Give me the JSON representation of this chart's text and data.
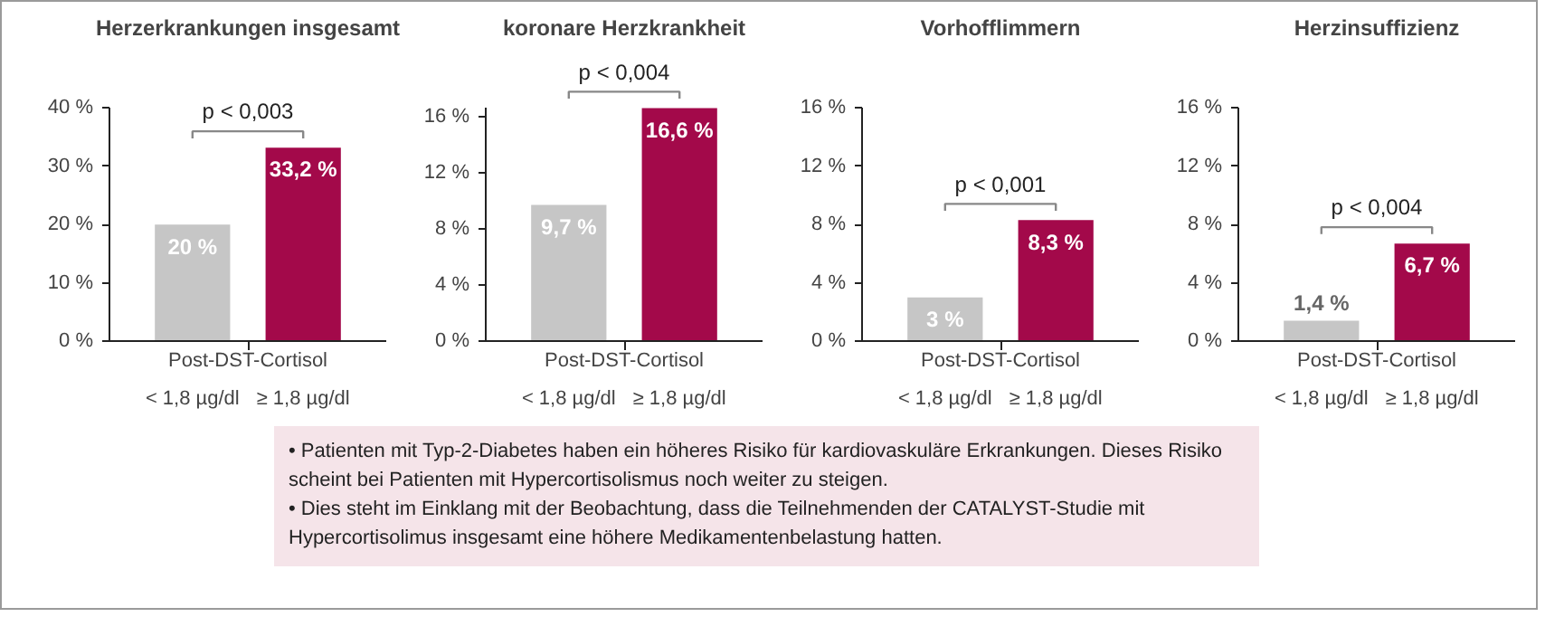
{
  "chart_data": [
    {
      "type": "bar",
      "title": "Herzerkrankungen insgesamt",
      "xlabel": "Post-DST-Cortisol",
      "categories": [
        "< 1,8 µg/dl",
        "≥ 1,8 µg/dl"
      ],
      "values": [
        20,
        33.2
      ],
      "colors": [
        "#c6c6c6",
        "#a3094a"
      ],
      "value_labels": [
        "20 %",
        "33,2 %"
      ],
      "ylim": [
        0,
        40
      ],
      "yticks": [
        {
          "value": 0,
          "label": "0 %"
        },
        {
          "value": 10,
          "label": "10 %"
        },
        {
          "value": 20,
          "label": "20 %"
        },
        {
          "value": 30,
          "label": "30 %"
        },
        {
          "value": 40,
          "label": "40 %"
        }
      ],
      "annotations": [
        "p < 0,003"
      ]
    },
    {
      "type": "bar",
      "title": "koronare Herzkrankheit",
      "xlabel": "Post-DST-Cortisol",
      "categories": [
        "< 1,8 µg/dl",
        "≥ 1,8 µg/dl"
      ],
      "values": [
        9.7,
        16.6
      ],
      "colors": [
        "#c6c6c6",
        "#a3094a"
      ],
      "value_labels": [
        "9,7 %",
        "16,6 %"
      ],
      "ylim": [
        0,
        16.6
      ],
      "yticks": [
        {
          "value": 0,
          "label": "0 %"
        },
        {
          "value": 4,
          "label": "4 %"
        },
        {
          "value": 8,
          "label": "8 %"
        },
        {
          "value": 12,
          "label": "12 %"
        },
        {
          "value": 16,
          "label": "16 %"
        }
      ],
      "annotations": [
        "p < 0,004"
      ]
    },
    {
      "type": "bar",
      "title": "Vorhofflimmern",
      "xlabel": "Post-DST-Cortisol",
      "categories": [
        "< 1,8 µg/dl",
        "≥ 1,8 µg/dl"
      ],
      "values": [
        3,
        8.3
      ],
      "colors": [
        "#c6c6c6",
        "#a3094a"
      ],
      "value_labels": [
        "3 %",
        "8,3 %"
      ],
      "ylim": [
        0,
        16
      ],
      "yticks": [
        {
          "value": 0,
          "label": "0 %"
        },
        {
          "value": 4,
          "label": "4 %"
        },
        {
          "value": 8,
          "label": "8 %"
        },
        {
          "value": 12,
          "label": "12 %"
        },
        {
          "value": 16,
          "label": "16 %"
        }
      ],
      "annotations": [
        "p < 0,001"
      ]
    },
    {
      "type": "bar",
      "title": "Herzinsuffizienz",
      "xlabel": "Post-DST-Cortisol",
      "categories": [
        "< 1,8 µg/dl",
        "≥ 1,8 µg/dl"
      ],
      "values": [
        1.4,
        6.7
      ],
      "colors": [
        "#c6c6c6",
        "#a3094a"
      ],
      "value_labels": [
        "1,4 %",
        "6,7 %"
      ],
      "ylim": [
        0,
        16
      ],
      "yticks": [
        {
          "value": 0,
          "label": "0 %"
        },
        {
          "value": 4,
          "label": "4 %"
        },
        {
          "value": 8,
          "label": "8 %"
        },
        {
          "value": 12,
          "label": "12 %"
        },
        {
          "value": 16,
          "label": "16 %"
        }
      ],
      "annotations": [
        "p < 0,004"
      ]
    },
    {
      "type": "other",
      "annotations": [
        "• Patienten mit Typ-2-Diabetes haben ein höheres Risiko für kardiovaskuläre Erkrankungen. Dieses Risiko scheint bei Patienten mit Hypercortisolismus noch weiter zu steigen.",
        "• Dies steht im Einklang mit der Beobachtung, dass die Teilnehmenden der CATALYST-Studie mit Hypercortisolimus insgesamt eine höhere Medikamentenbelastung hatten."
      ]
    }
  ]
}
